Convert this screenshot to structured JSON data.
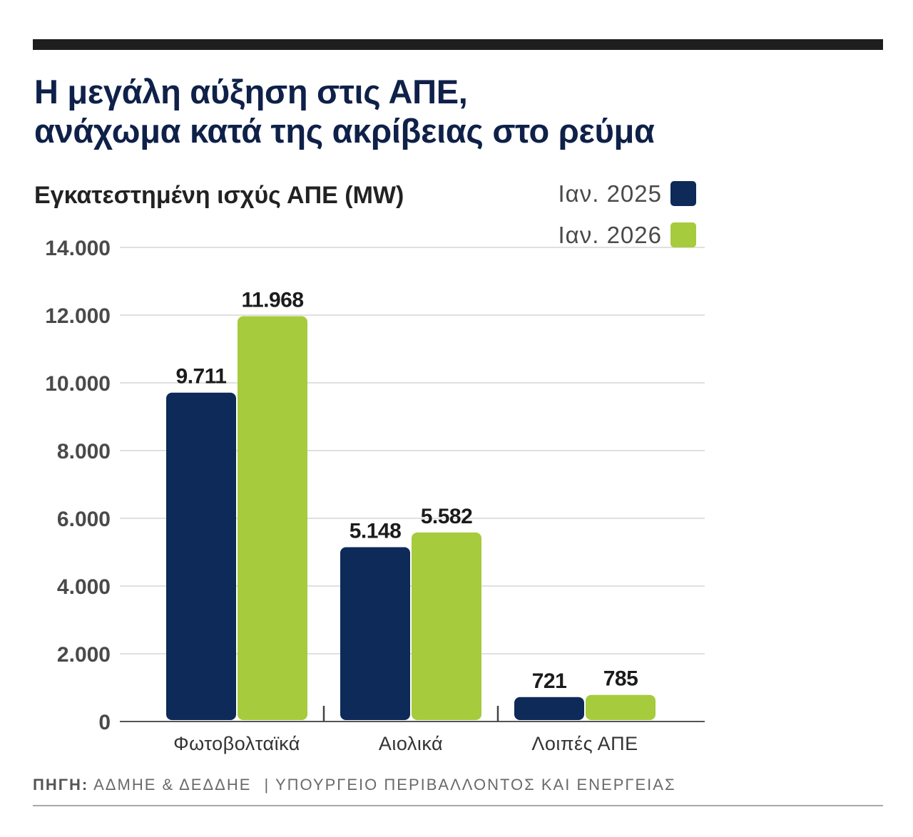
{
  "header": {
    "title_line_1": "Η μεγάλη αύξηση στις ΑΠΕ,",
    "title_line_2": "ανάχωμα κατά της ακρίβειας στο ρεύμα"
  },
  "chart_data": {
    "type": "bar",
    "title": "Εγκατεστημένη ισχύς ΑΠΕ (MW)",
    "categories": [
      "Φωτοβολταϊκά",
      "Αιολικά",
      "Λοιπές ΑΠΕ"
    ],
    "series": [
      {
        "name": "Ιαν. 2025",
        "color": "#0d2a58",
        "values": [
          9711,
          5148,
          721
        ],
        "value_labels": [
          "9.711",
          "5.148",
          "721"
        ]
      },
      {
        "name": "Ιαν. 2026",
        "color": "#a6cb3d",
        "values": [
          11968,
          5582,
          785
        ],
        "value_labels": [
          "11.968",
          "5.582",
          "785"
        ]
      }
    ],
    "ylim": [
      0,
      14000
    ],
    "yticks": [
      0,
      2000,
      4000,
      6000,
      8000,
      10000,
      12000,
      14000
    ],
    "ytick_labels": [
      "0",
      "2.000",
      "4.000",
      "6.000",
      "8.000",
      "10.000",
      "12.000",
      "14.000"
    ],
    "grid": true,
    "legend": "top-right"
  },
  "footer": {
    "source_label": "ΠΗΓΗ:",
    "source_text": "ΑΔΜΗΕ & ΔΕΔΔΗΕ",
    "separator": "|",
    "ministry": "ΥΠΟΥΡΓΕΙΟ ΠΕΡΙΒΑΛΛΟΝΤΟΣ ΚΑΙ ΕΝΕΡΓΕΙΑΣ"
  }
}
